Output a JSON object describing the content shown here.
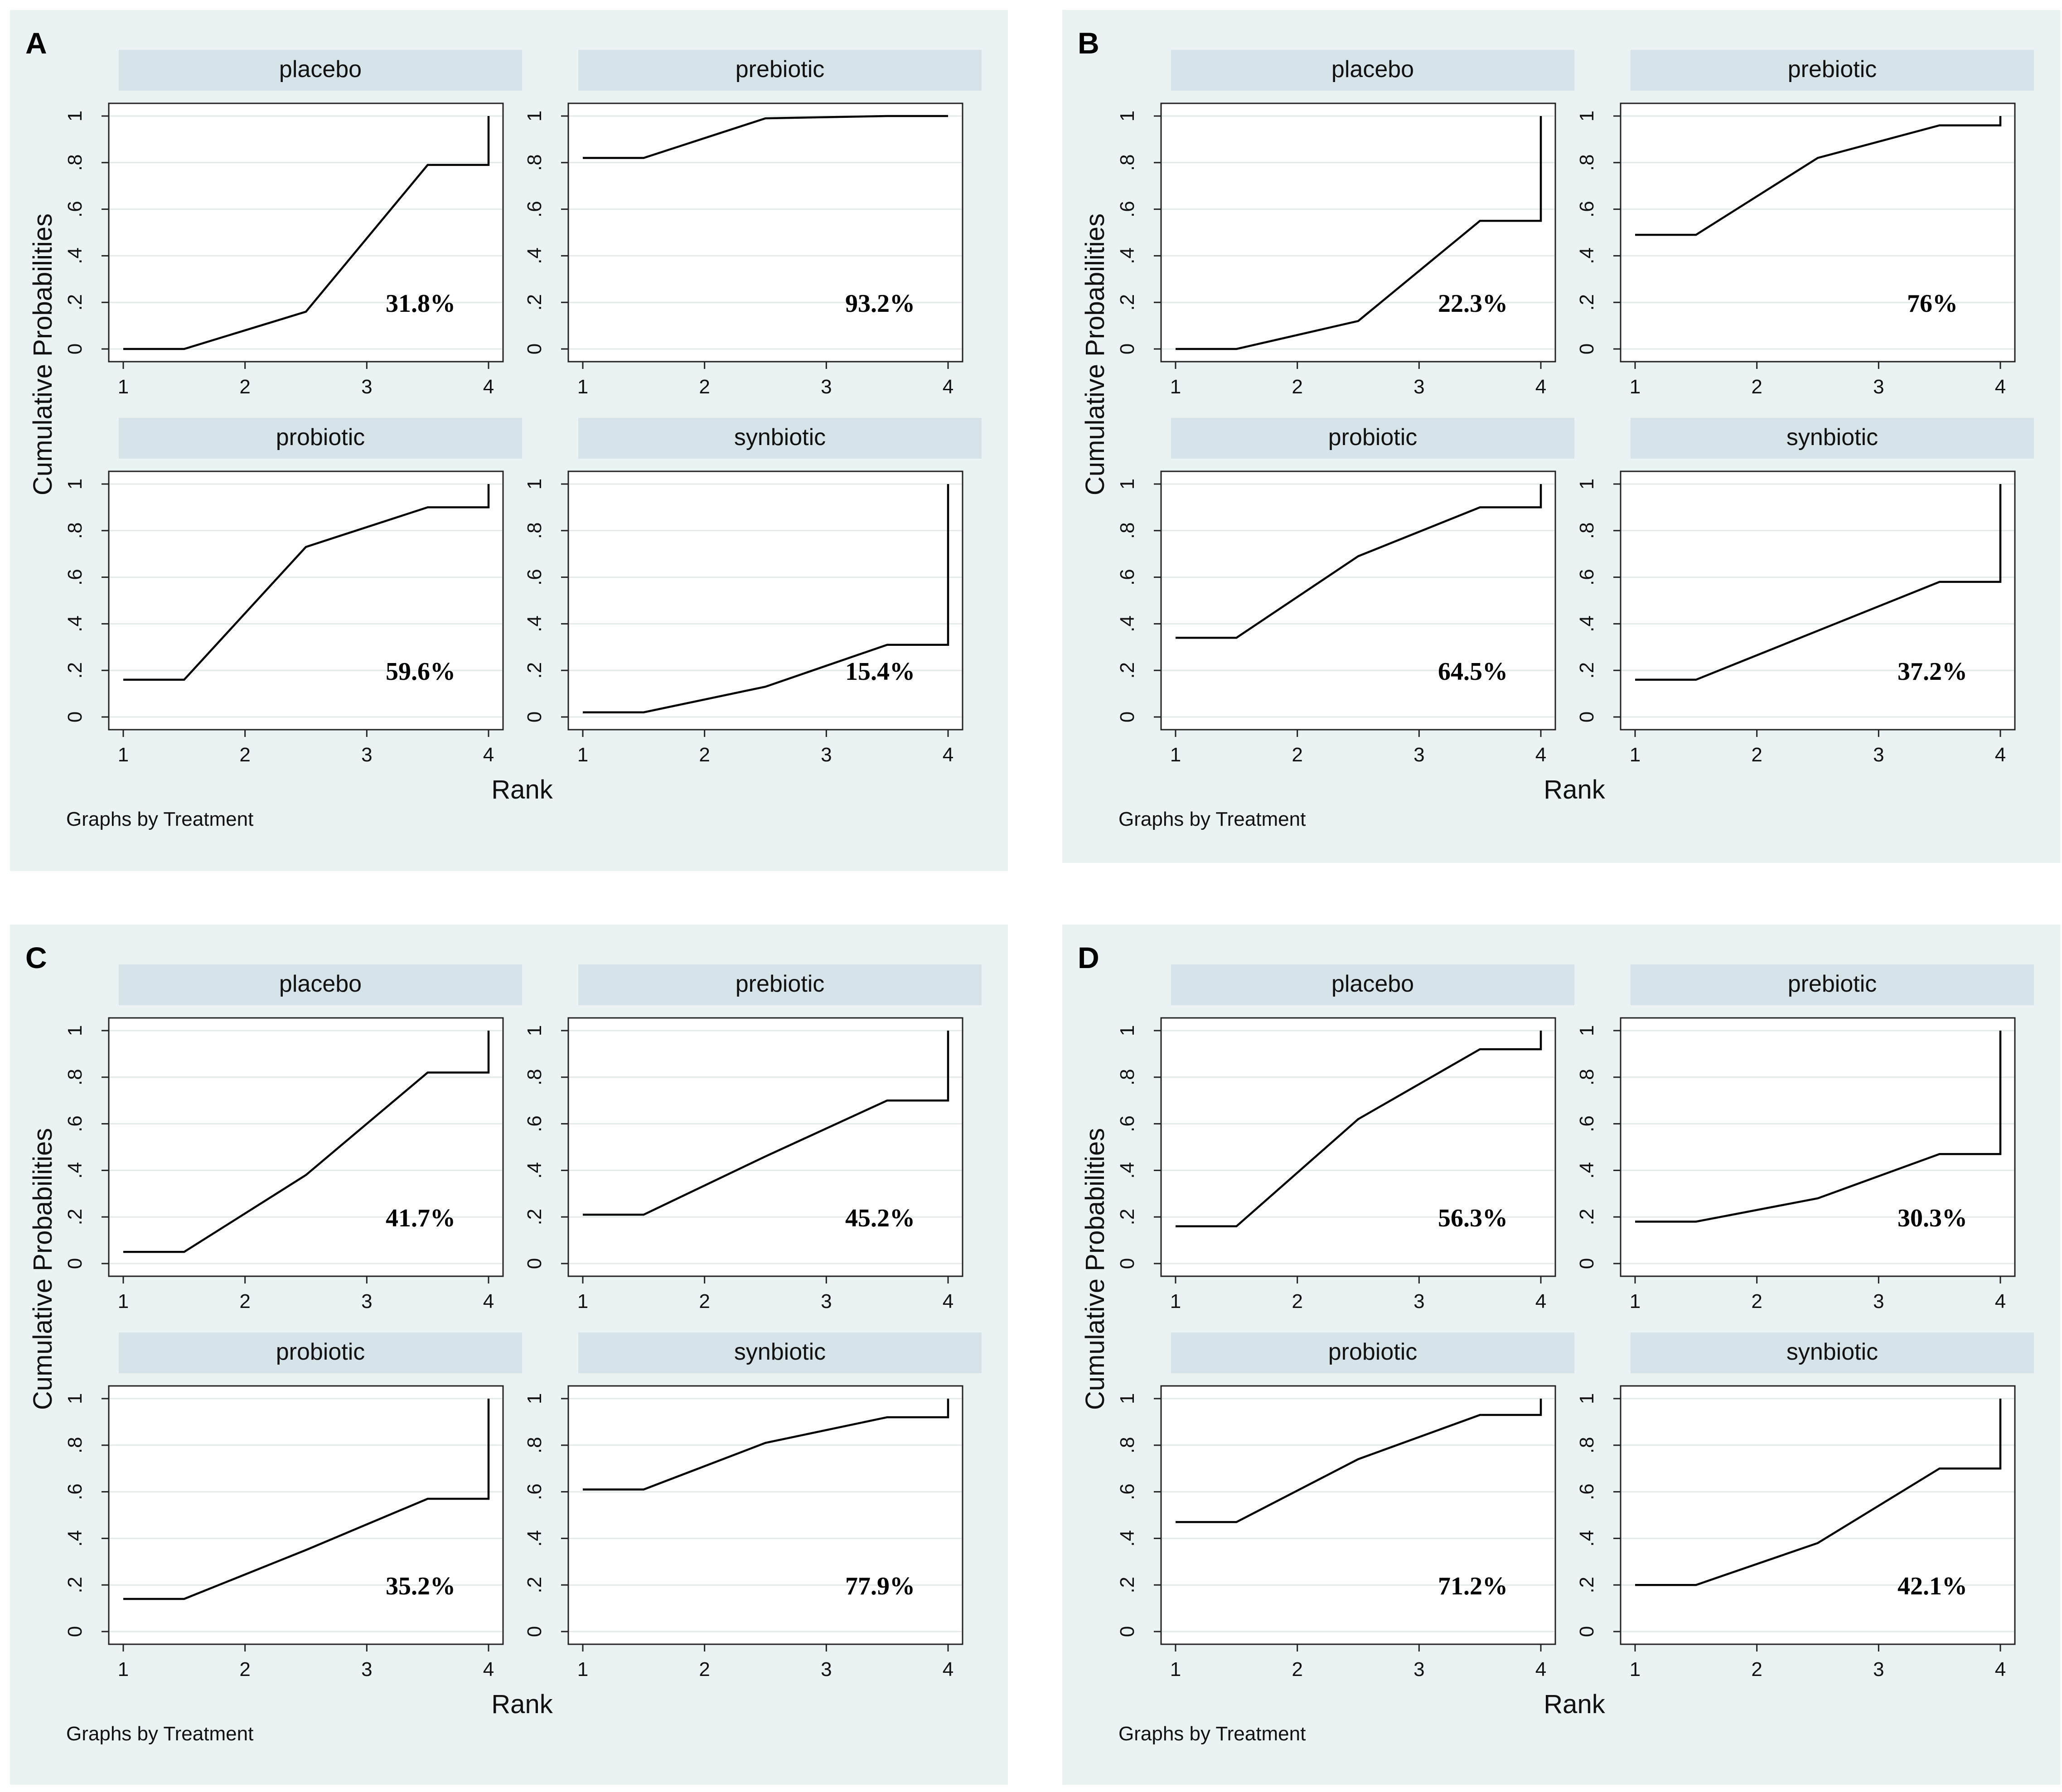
{
  "figure": {
    "y_axis_label": "Cumulative Probabilities",
    "x_axis_label": "Rank",
    "note": "Graphs by Treatment",
    "x_ticks": [
      "1",
      "2",
      "3",
      "4"
    ],
    "y_ticks": [
      "0",
      ".2",
      ".4",
      ".6",
      ".8",
      "1"
    ],
    "colors": {
      "panel_background": "#eaf2f3",
      "strip_background": "#d6e3e9",
      "plot_background": "#ffffff",
      "grid": "#e4e9ea",
      "line": "#000000"
    }
  },
  "chart_data": [
    {
      "type": "line",
      "panel": "A",
      "xlabel": "Rank",
      "ylabel": "Cumulative Probabilities",
      "xlim": [
        1,
        4
      ],
      "ylim": [
        0,
        1
      ],
      "subplots": [
        {
          "title": "placebo",
          "annotation": "31.8%",
          "x": [
            1,
            1.5,
            2.5,
            3.5,
            4,
            4
          ],
          "y": [
            0,
            0,
            0.16,
            0.79,
            0.79,
            1
          ]
        },
        {
          "title": "prebiotic",
          "annotation": "93.2%",
          "x": [
            1,
            1.5,
            2.5,
            3.5,
            4,
            4
          ],
          "y": [
            0.82,
            0.82,
            0.99,
            1.0,
            1.0,
            1
          ]
        },
        {
          "title": "probiotic",
          "annotation": "59.6%",
          "x": [
            1,
            1.5,
            2.5,
            3.5,
            4,
            4
          ],
          "y": [
            0.16,
            0.16,
            0.73,
            0.9,
            0.9,
            1
          ]
        },
        {
          "title": "synbiotic",
          "annotation": "15.4%",
          "x": [
            1,
            1.5,
            2.5,
            3.5,
            4,
            4
          ],
          "y": [
            0.02,
            0.02,
            0.13,
            0.31,
            0.31,
            1
          ]
        }
      ]
    },
    {
      "type": "line",
      "panel": "B",
      "xlabel": "Rank",
      "ylabel": "Cumulative Probabilities",
      "xlim": [
        1,
        4
      ],
      "ylim": [
        0,
        1
      ],
      "subplots": [
        {
          "title": "placebo",
          "annotation": "22.3%",
          "x": [
            1,
            1.5,
            2.5,
            3.5,
            4,
            4
          ],
          "y": [
            0,
            0,
            0.12,
            0.55,
            0.55,
            1
          ]
        },
        {
          "title": "prebiotic",
          "annotation": "76%",
          "x": [
            1,
            1.5,
            2.5,
            3.5,
            4,
            4
          ],
          "y": [
            0.49,
            0.49,
            0.82,
            0.96,
            0.96,
            1
          ]
        },
        {
          "title": "probiotic",
          "annotation": "64.5%",
          "x": [
            1,
            1.5,
            2.5,
            3.5,
            4,
            4
          ],
          "y": [
            0.34,
            0.34,
            0.69,
            0.9,
            0.9,
            1
          ]
        },
        {
          "title": "synbiotic",
          "annotation": "37.2%",
          "x": [
            1,
            1.5,
            2.5,
            3.5,
            4,
            4
          ],
          "y": [
            0.16,
            0.16,
            0.37,
            0.58,
            0.58,
            1
          ]
        }
      ]
    },
    {
      "type": "line",
      "panel": "C",
      "xlabel": "Rank",
      "ylabel": "Cumulative Probabilities",
      "xlim": [
        1,
        4
      ],
      "ylim": [
        0,
        1
      ],
      "subplots": [
        {
          "title": "placebo",
          "annotation": "41.7%",
          "x": [
            1,
            1.5,
            2.5,
            3.5,
            4,
            4
          ],
          "y": [
            0.05,
            0.05,
            0.38,
            0.82,
            0.82,
            1
          ]
        },
        {
          "title": "prebiotic",
          "annotation": "45.2%",
          "x": [
            1,
            1.5,
            2.5,
            3.5,
            4,
            4
          ],
          "y": [
            0.21,
            0.21,
            0.46,
            0.7,
            0.7,
            1
          ]
        },
        {
          "title": "probiotic",
          "annotation": "35.2%",
          "x": [
            1,
            1.5,
            2.5,
            3.5,
            4,
            4
          ],
          "y": [
            0.14,
            0.14,
            0.35,
            0.57,
            0.57,
            1
          ]
        },
        {
          "title": "synbiotic",
          "annotation": "77.9%",
          "x": [
            1,
            1.5,
            2.5,
            3.5,
            4,
            4
          ],
          "y": [
            0.61,
            0.61,
            0.81,
            0.92,
            0.92,
            1
          ]
        }
      ]
    },
    {
      "type": "line",
      "panel": "D",
      "xlabel": "Rank",
      "ylabel": "Cumulative Probabilities",
      "xlim": [
        1,
        4
      ],
      "ylim": [
        0,
        1
      ],
      "subplots": [
        {
          "title": "placebo",
          "annotation": "56.3%",
          "x": [
            1,
            1.5,
            2.5,
            3.5,
            4,
            4
          ],
          "y": [
            0.16,
            0.16,
            0.62,
            0.92,
            0.92,
            1
          ]
        },
        {
          "title": "prebiotic",
          "annotation": "30.3%",
          "x": [
            1,
            1.5,
            2.5,
            3.5,
            4,
            4
          ],
          "y": [
            0.18,
            0.18,
            0.28,
            0.47,
            0.47,
            1
          ]
        },
        {
          "title": "probiotic",
          "annotation": "71.2%",
          "x": [
            1,
            1.5,
            2.5,
            3.5,
            4,
            4
          ],
          "y": [
            0.47,
            0.47,
            0.74,
            0.93,
            0.93,
            1
          ]
        },
        {
          "title": "synbiotic",
          "annotation": "42.1%",
          "x": [
            1,
            1.5,
            2.5,
            3.5,
            4,
            4
          ],
          "y": [
            0.2,
            0.2,
            0.38,
            0.7,
            0.7,
            1
          ]
        }
      ]
    }
  ]
}
